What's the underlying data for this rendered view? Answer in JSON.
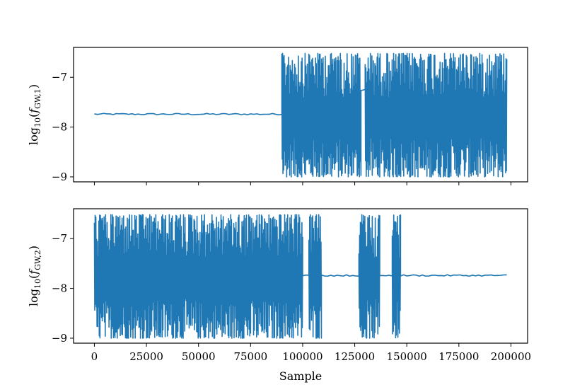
{
  "chart_data": [
    {
      "type": "line",
      "ylabel": "log10(fGW,1)",
      "ylabel_parts": {
        "base": "log",
        "base_sub": "10",
        "open": "(",
        "sym": "f",
        "sym_sub": "GW,1",
        "close": ")"
      },
      "xlim": [
        -10000,
        208000
      ],
      "ylim": [
        -9.1,
        -6.4
      ],
      "x_ticks": [
        0,
        25000,
        50000,
        75000,
        100000,
        125000,
        150000,
        175000,
        200000
      ],
      "x_tick_labels_shown": false,
      "y_ticks": [
        -9,
        -8,
        -7
      ],
      "y_tick_labels": [
        "−9",
        "−8",
        "−7"
      ],
      "grid": false,
      "color": "#1f77b4",
      "series": [
        {
          "values_description_segments": [
            {
              "x_start": 0,
              "x_end": 90000,
              "mode": "flat",
              "level": -7.74
            },
            {
              "x_start": 90000,
              "x_end": 128000,
              "mode": "oscillating",
              "low": -9.0,
              "high": -6.52
            },
            {
              "x_start": 128000,
              "x_end": 130000,
              "mode": "flat",
              "level": -7.25
            },
            {
              "x_start": 130000,
              "x_end": 198000,
              "mode": "oscillating",
              "low": -9.0,
              "high": -6.52
            }
          ]
        }
      ]
    },
    {
      "type": "line",
      "ylabel": "log10(fGW,2)",
      "ylabel_parts": {
        "base": "log",
        "base_sub": "10",
        "open": "(",
        "sym": "f",
        "sym_sub": "GW,2",
        "close": ")"
      },
      "xlabel": "Sample",
      "xlim": [
        -10000,
        208000
      ],
      "ylim": [
        -9.1,
        -6.4
      ],
      "x_ticks": [
        0,
        25000,
        50000,
        75000,
        100000,
        125000,
        150000,
        175000,
        200000
      ],
      "x_tick_labels": [
        "0",
        "25000",
        "50000",
        "75000",
        "100000",
        "125000",
        "150000",
        "175000",
        "200000"
      ],
      "y_ticks": [
        -9,
        -8,
        -7
      ],
      "y_tick_labels": [
        "−9",
        "−8",
        "−7"
      ],
      "grid": false,
      "color": "#1f77b4",
      "series": [
        {
          "values_description_segments": [
            {
              "x_start": 0,
              "x_end": 100000,
              "mode": "oscillating",
              "low": -9.0,
              "high": -6.52
            },
            {
              "x_start": 100000,
              "x_end": 103000,
              "mode": "flat",
              "level": -7.74
            },
            {
              "x_start": 103000,
              "x_end": 109000,
              "mode": "oscillating",
              "low": -9.0,
              "high": -6.52
            },
            {
              "x_start": 109000,
              "x_end": 127000,
              "mode": "flat",
              "level": -7.74
            },
            {
              "x_start": 127000,
              "x_end": 137000,
              "mode": "oscillating",
              "low": -9.0,
              "high": -6.52
            },
            {
              "x_start": 137000,
              "x_end": 143000,
              "mode": "flat",
              "level": -7.74
            },
            {
              "x_start": 143000,
              "x_end": 147000,
              "mode": "oscillating",
              "low": -9.0,
              "high": -6.52
            },
            {
              "x_start": 147000,
              "x_end": 198000,
              "mode": "flat",
              "level": -7.74
            }
          ]
        }
      ]
    }
  ]
}
